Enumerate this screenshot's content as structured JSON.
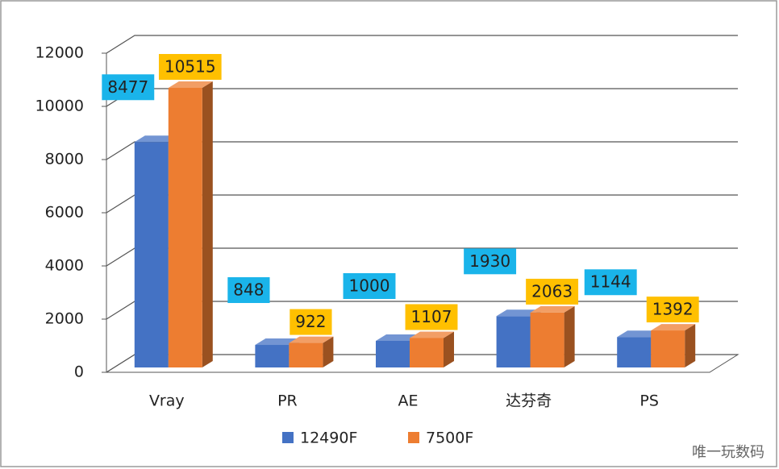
{
  "chart_data": {
    "type": "bar3d",
    "categories": [
      "Vray",
      "PR",
      "AE",
      "达芬奇",
      "PS"
    ],
    "series": [
      {
        "name": "12490F",
        "color": "#4472c4",
        "label_color": "#1ab4ea",
        "values": [
          8477,
          848,
          1000,
          1930,
          1144
        ]
      },
      {
        "name": "7500F",
        "color": "#ed7d31",
        "label_color": "#ffc000",
        "values": [
          10515,
          922,
          1107,
          2063,
          1392
        ]
      }
    ],
    "ylim": [
      0,
      12000
    ],
    "yticks": [
      0,
      2000,
      4000,
      6000,
      8000,
      10000,
      12000
    ],
    "grid": true,
    "legend": "bottom",
    "watermark": "唯一玩数码"
  }
}
